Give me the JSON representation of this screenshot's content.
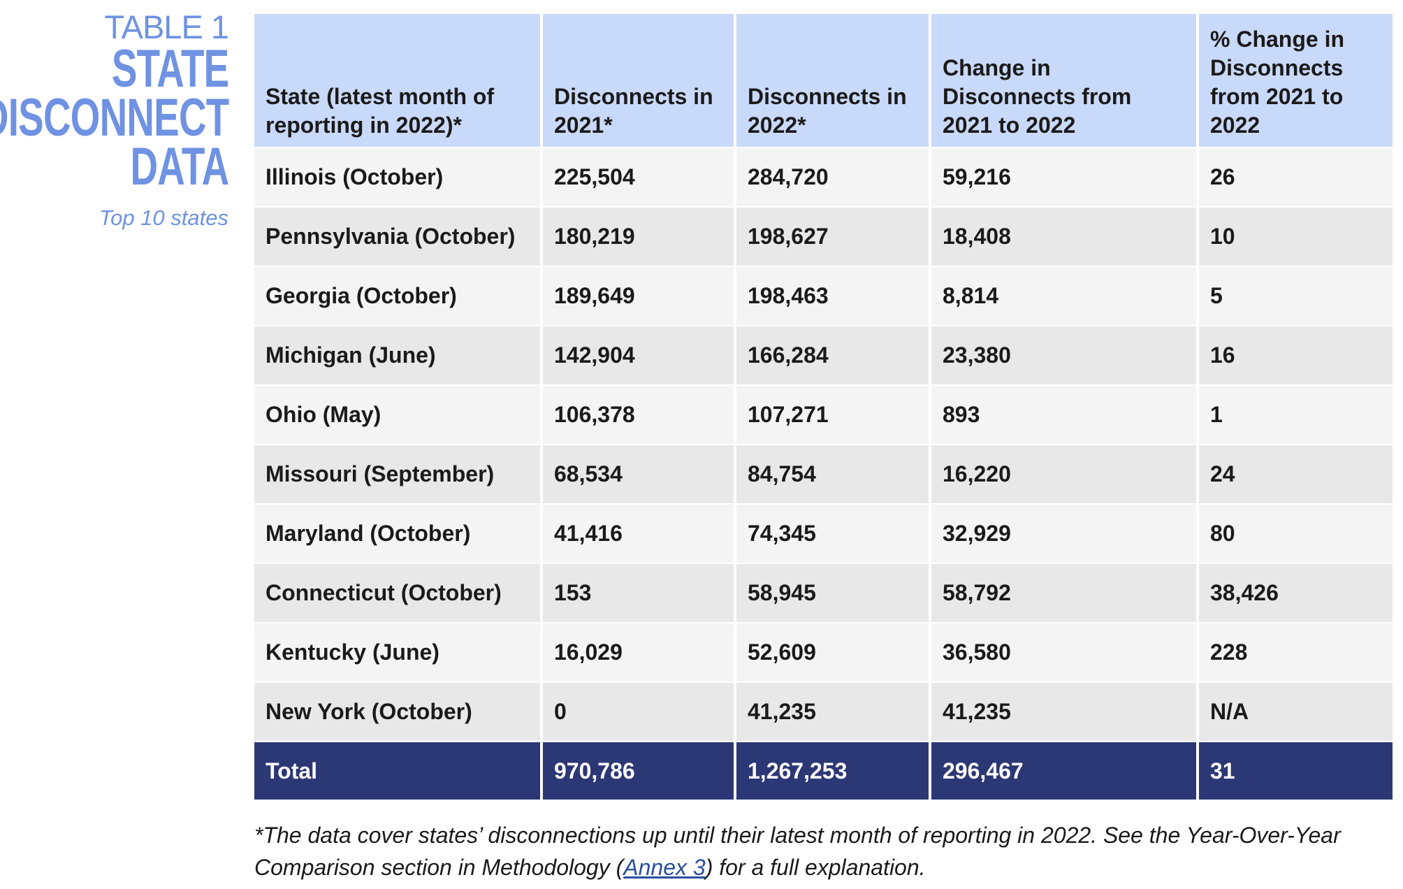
{
  "title": {
    "label": "TABLE 1",
    "lines": [
      "STATE",
      "DISCONNECT",
      "DATA"
    ],
    "subtitle": "Top 10 states",
    "color": "#6f92e2"
  },
  "table": {
    "headers": [
      "State (latest month of reporting in 2022)*",
      "Disconnects in 2021*",
      "Disconnects in 2022*",
      "Change in Disconnects from 2021 to 2022",
      "% Change in Disconnects from 2021 to 2022"
    ],
    "rows": [
      [
        "Illinois (October)",
        "225,504",
        "284,720",
        "59,216",
        "26"
      ],
      [
        "Pennsylvania (October)",
        "180,219",
        "198,627",
        "18,408",
        "10"
      ],
      [
        "Georgia (October)",
        "189,649",
        "198,463",
        "8,814",
        "5"
      ],
      [
        "Michigan (June)",
        "142,904",
        "166,284",
        "23,380",
        "16"
      ],
      [
        "Ohio (May)",
        "106,378",
        "107,271",
        "893",
        "1"
      ],
      [
        "Missouri (September)",
        "68,534",
        "84,754",
        "16,220",
        "24"
      ],
      [
        "Maryland (October)",
        "41,416",
        "74,345",
        "32,929",
        "80"
      ],
      [
        "Connecticut (October)",
        "153",
        "58,945",
        "58,792",
        "38,426"
      ],
      [
        "Kentucky (June)",
        "16,029",
        "52,609",
        "36,580",
        "228"
      ],
      [
        "New York (October)",
        "0",
        "41,235",
        "41,235",
        "N/A"
      ]
    ],
    "total": [
      "Total",
      "970,786",
      "1,267,253",
      "296,467",
      "31"
    ],
    "colors": {
      "header": "#c9d9f9",
      "total": "#2c3775"
    }
  },
  "footnote": {
    "before": "*The data cover states’ disconnections up until their latest month of reporting in 2022. See the Year-Over-Year Comparison section in Methodology (",
    "link": "Annex 3",
    "after": ") for a full explanation."
  }
}
